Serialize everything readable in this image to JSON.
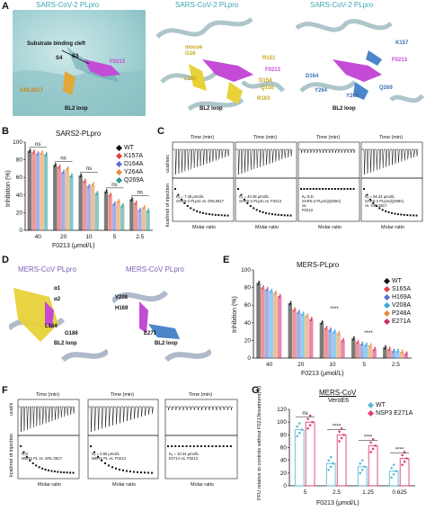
{
  "colors": {
    "wt": "#111111",
    "k157a": "#e0413f",
    "d164a": "#5b6fd6",
    "y264a": "#e58b3c",
    "q269a": "#2a9b95",
    "s165a": "#e0413f",
    "h169a": "#5b6fd6",
    "v208a": "#3aa6e0",
    "p248a": "#e58b3c",
    "e271a": "#d6286f",
    "g_wt": "#5bbcd6",
    "g_mut": "#e0407e",
    "cyan_title": "#3aa6b0",
    "purple_title": "#7a5fb5"
  },
  "panelA": {
    "letter": "A",
    "titles": [
      "SARS-CoV-2 PLpro",
      "SARS-CoV-2 PLpro",
      "SARS-CoV-2 PLpro"
    ],
    "labels": {
      "cleft": "Substrate binding cleft",
      "s4": "S4",
      "s3": "S3",
      "f0213": "F0213",
      "grl": "GRL0617",
      "bl2": "BL2 loop",
      "mouse": "mouse",
      "g16": "G16",
      "r151": "R151",
      "l160": "L160",
      "d154": "D154",
      "q156": "Q156",
      "r163": "R163",
      "bl2b": "BL2 loop",
      "k157": "K157",
      "d164": "D164",
      "y264": "Y264",
      "y268": "Y268",
      "q269": "Q269",
      "bl2c": "BL2 loop"
    }
  },
  "panelB": {
    "letter": "B",
    "title": "SARS2-PLpro",
    "ylabel": "Inhibition (%)",
    "xlabel": "F0213 (μmol/L)",
    "yticks": [
      "0",
      "20",
      "40",
      "60",
      "80",
      "100"
    ],
    "categories": [
      "40",
      "20",
      "10",
      "5",
      "2.5"
    ],
    "sig": [
      "ns",
      "ns",
      "ns",
      "ns",
      "ns"
    ],
    "legend": [
      "WT",
      "K157A",
      "D164A",
      "Y264A",
      "Q269A"
    ]
  },
  "panelC": {
    "letter": "C",
    "time": "Time (min)",
    "units": "ucal/sec",
    "yl": "kcal/mol of injection",
    "xl": "Molar ratio",
    "notes": [
      "Kₑ = 7.46 μmol/L\nSARS-2 PLpro vs. GRL0617",
      "Kₑ = 40.48 μmol/L\nSARS-2 PLpro vs. F0213",
      "Kₑ N.D\nSARS-2 PLpro(Q269A)\nvs.\nF0213",
      "Kₑ = 56.34 μmol/L\nSARS-2 PLpro(Q269A)\nvs. GRL0617"
    ]
  },
  "panelD": {
    "letter": "D",
    "titles": [
      "MERS-CoV PLpro",
      "MERS-CoV PLpro"
    ],
    "labels": {
      "a1": "α1",
      "a2": "α2",
      "l184": "L184",
      "g186": "G186",
      "bl2": "BL2 loop",
      "v208": "V208",
      "h169": "H169",
      "e271": "E271",
      "bl2b": "BL2 loop"
    }
  },
  "panelE": {
    "letter": "E",
    "title": "MERS-PLpro",
    "ylabel": "Inhibition (%)",
    "xlabel": "F0213 (μmol/L)",
    "yticks": [
      "0",
      "20",
      "40",
      "60",
      "80",
      "100"
    ],
    "categories": [
      "40",
      "20",
      "10",
      "5",
      "2.5"
    ],
    "legend": [
      "WT",
      "S165A",
      "H169A",
      "V208A",
      "P248A",
      "E271A"
    ],
    "stars": [
      "****",
      "****"
    ]
  },
  "panelF": {
    "letter": "F",
    "time": "Time (min)",
    "units": "ucal/s",
    "yl": "kcal/mol of injection",
    "xl": "Molar ratio",
    "notes": [
      "N.D\nMERS PL vs. GRL 0617",
      "Kₑ = 0.95 μmol/L\nMERS PL vs. F0213",
      "Kₑ = 10.34 μmol/L\nE271A vs. F0213"
    ]
  },
  "panelG": {
    "letter": "G",
    "title": "MERS-CoV",
    "subtitle": "VeroE6",
    "ylabel": "PFU relative to controls without F0213treatment(%)",
    "xlabel": "F0213 (μmol/L)",
    "yticks": [
      "0",
      "20",
      "40",
      "60",
      "80",
      "100",
      "120"
    ],
    "categories": [
      "5",
      "2.5",
      "1.25",
      "0.625"
    ],
    "sig": [
      "ns",
      "****",
      "****",
      "****"
    ],
    "legend": [
      "WT",
      "NSP3 E271A"
    ]
  },
  "chart_data": [
    {
      "type": "bar",
      "title": "SARS2-PLpro",
      "xlabel": "F0213 (μmol/L)",
      "ylabel": "Inhibition (%)",
      "ylim": [
        0,
        100
      ],
      "categories": [
        "40",
        "20",
        "10",
        "5",
        "2.5"
      ],
      "series": [
        {
          "name": "WT",
          "values": [
            90,
            74,
            62,
            44,
            35
          ]
        },
        {
          "name": "K157A",
          "values": [
            89,
            72,
            56,
            40,
            31
          ]
        },
        {
          "name": "D164A",
          "values": [
            87,
            66,
            50,
            30,
            23
          ]
        },
        {
          "name": "Y264A",
          "values": [
            88,
            70,
            52,
            33,
            26
          ]
        },
        {
          "name": "Q269A",
          "values": [
            86,
            62,
            42,
            28,
            22
          ]
        }
      ]
    },
    {
      "type": "bar",
      "title": "MERS-PLpro",
      "xlabel": "F0213 (μmol/L)",
      "ylabel": "Inhibition (%)",
      "ylim": [
        0,
        100
      ],
      "categories": [
        "40",
        "20",
        "10",
        "5",
        "2.5"
      ],
      "series": [
        {
          "name": "WT",
          "values": [
            85,
            62,
            40,
            22,
            12
          ]
        },
        {
          "name": "S165A",
          "values": [
            80,
            55,
            34,
            18,
            10
          ]
        },
        {
          "name": "H169A",
          "values": [
            78,
            52,
            32,
            16,
            8
          ]
        },
        {
          "name": "V208A",
          "values": [
            76,
            50,
            30,
            15,
            8
          ]
        },
        {
          "name": "P248A",
          "values": [
            74,
            48,
            28,
            14,
            7
          ]
        },
        {
          "name": "E271A",
          "values": [
            70,
            44,
            20,
            10,
            5
          ]
        }
      ]
    },
    {
      "type": "bar",
      "title": "MERS-CoV",
      "xlabel": "F0213 (μmol/L)",
      "ylabel": "PFU relative to controls without F0213treatment(%)",
      "ylim": [
        0,
        120
      ],
      "categories": [
        "5",
        "2.5",
        "1.25",
        "0.625"
      ],
      "series": [
        {
          "name": "WT",
          "values": [
            88,
            35,
            30,
            23
          ]
        },
        {
          "name": "NSP3 E271A",
          "values": [
            100,
            80,
            63,
            43
          ]
        }
      ]
    }
  ]
}
